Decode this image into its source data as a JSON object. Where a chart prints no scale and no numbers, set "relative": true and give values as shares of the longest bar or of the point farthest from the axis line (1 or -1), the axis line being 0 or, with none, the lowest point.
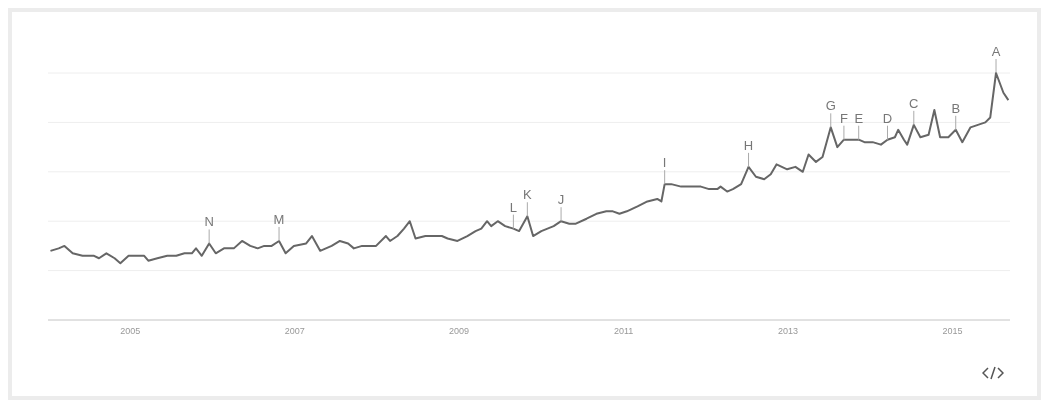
{
  "chart_data": {
    "type": "line",
    "relative": true,
    "grid": "y",
    "marker": "none",
    "line_style": "solid",
    "xlim": [
      2004.0,
      2015.7
    ],
    "xticks": [
      2005,
      2007,
      2009,
      2011,
      2013,
      2015
    ],
    "x": [
      2004.03,
      2004.13,
      2004.2,
      2004.3,
      2004.42,
      2004.56,
      2004.62,
      2004.71,
      2004.81,
      2004.88,
      2004.98,
      2005.07,
      2005.17,
      2005.22,
      2005.33,
      2005.45,
      2005.56,
      2005.66,
      2005.75,
      2005.8,
      2005.87,
      2005.96,
      2006.04,
      2006.14,
      2006.26,
      2006.36,
      2006.46,
      2006.55,
      2006.63,
      2006.72,
      2006.81,
      2006.89,
      2006.99,
      2007.14,
      2007.21,
      2007.31,
      2007.45,
      2007.55,
      2007.65,
      2007.72,
      2007.82,
      2007.89,
      2007.99,
      2008.11,
      2008.16,
      2008.25,
      2008.33,
      2008.4,
      2008.47,
      2008.59,
      2008.71,
      2008.79,
      2008.86,
      2008.98,
      2009.1,
      2009.2,
      2009.27,
      2009.34,
      2009.39,
      2009.47,
      2009.56,
      2009.66,
      2009.73,
      2009.83,
      2009.9,
      2010.0,
      2010.15,
      2010.24,
      2010.34,
      2010.42,
      2010.55,
      2010.67,
      2010.79,
      2010.87,
      2010.95,
      2011.04,
      2011.17,
      2011.29,
      2011.41,
      2011.46,
      2011.5,
      2011.58,
      2011.7,
      2011.82,
      2011.94,
      2012.04,
      2012.14,
      2012.18,
      2012.26,
      2012.33,
      2012.43,
      2012.52,
      2012.61,
      2012.71,
      2012.79,
      2012.86,
      2012.99,
      2013.09,
      2013.18,
      2013.25,
      2013.34,
      2013.42,
      2013.52,
      2013.6,
      2013.68,
      2013.79,
      2013.86,
      2013.93,
      2014.03,
      2014.13,
      2014.21,
      2014.3,
      2014.34,
      2014.41,
      2014.45,
      2014.53,
      2014.61,
      2014.71,
      2014.78,
      2014.85,
      2014.95,
      2015.04,
      2015.12,
      2015.22,
      2015.4,
      2015.46,
      2015.53,
      2015.62,
      2015.68
    ],
    "series": [
      {
        "color": "#666666",
        "values": [
          0.28,
          0.29,
          0.3,
          0.27,
          0.26,
          0.26,
          0.25,
          0.27,
          0.25,
          0.23,
          0.26,
          0.26,
          0.26,
          0.24,
          0.25,
          0.26,
          0.26,
          0.27,
          0.27,
          0.29,
          0.26,
          0.31,
          0.27,
          0.29,
          0.29,
          0.32,
          0.3,
          0.29,
          0.3,
          0.3,
          0.32,
          0.27,
          0.3,
          0.31,
          0.34,
          0.28,
          0.3,
          0.32,
          0.31,
          0.29,
          0.3,
          0.3,
          0.3,
          0.34,
          0.32,
          0.34,
          0.37,
          0.4,
          0.33,
          0.34,
          0.34,
          0.34,
          0.33,
          0.32,
          0.34,
          0.36,
          0.37,
          0.4,
          0.38,
          0.4,
          0.38,
          0.37,
          0.36,
          0.42,
          0.34,
          0.36,
          0.38,
          0.4,
          0.39,
          0.39,
          0.41,
          0.43,
          0.44,
          0.44,
          0.43,
          0.44,
          0.46,
          0.48,
          0.49,
          0.48,
          0.55,
          0.55,
          0.54,
          0.54,
          0.54,
          0.53,
          0.53,
          0.54,
          0.52,
          0.53,
          0.55,
          0.62,
          0.58,
          0.57,
          0.59,
          0.63,
          0.61,
          0.62,
          0.6,
          0.67,
          0.64,
          0.66,
          0.78,
          0.7,
          0.73,
          0.73,
          0.73,
          0.72,
          0.72,
          0.71,
          0.73,
          0.74,
          0.77,
          0.73,
          0.71,
          0.79,
          0.74,
          0.75,
          0.85,
          0.74,
          0.74,
          0.77,
          0.72,
          0.78,
          0.8,
          0.82,
          1,
          0.92,
          0.89
        ]
      }
    ],
    "annotations": [
      {
        "text": "N",
        "x": 2005.96,
        "y": 0.31
      },
      {
        "text": "M",
        "x": 2006.81,
        "y": 0.32
      },
      {
        "text": "L",
        "x": 2009.66,
        "y": 0.37
      },
      {
        "text": "K",
        "x": 2009.83,
        "y": 0.42
      },
      {
        "text": "J",
        "x": 2010.24,
        "y": 0.4
      },
      {
        "text": "I",
        "x": 2011.5,
        "y": 0.55
      },
      {
        "text": "H",
        "x": 2012.52,
        "y": 0.62
      },
      {
        "text": "G",
        "x": 2013.52,
        "y": 0.78
      },
      {
        "text": "F",
        "x": 2013.68,
        "y": 0.73
      },
      {
        "text": "E",
        "x": 2013.86,
        "y": 0.73
      },
      {
        "text": "D",
        "x": 2014.21,
        "y": 0.73
      },
      {
        "text": "C",
        "x": 2014.53,
        "y": 0.79
      },
      {
        "text": "B",
        "x": 2015.04,
        "y": 0.77
      },
      {
        "text": "A",
        "x": 2015.53,
        "y": 1
      }
    ]
  }
}
